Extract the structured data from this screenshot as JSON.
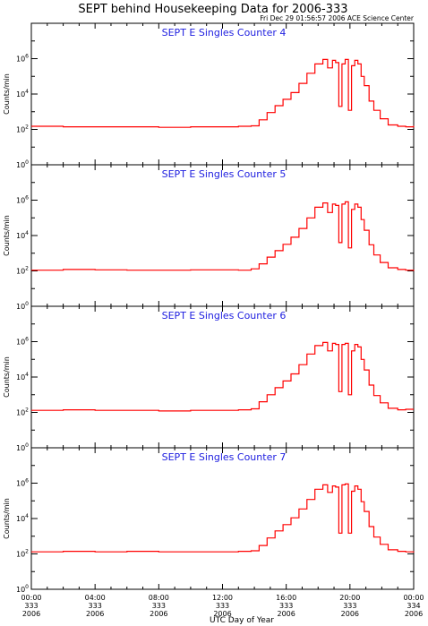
{
  "title": "SEPT behind Housekeeping Data for 2006-333",
  "timestamp": "Fri Dec 29 01:56:57 2006 ACE Science Center",
  "xlabel": "UTC Day of Year",
  "colors": {
    "trace": "#ff0000",
    "panel_title": "#2020e0",
    "axis": "#000000"
  },
  "chart_data": [
    {
      "type": "line",
      "title": "SEPT E Singles Counter 4",
      "ylabel": "Counts/min",
      "yscale": "log",
      "ylim": [
        1,
        100000000
      ],
      "yticks": [
        {
          "v": 1,
          "label": "10^0"
        },
        {
          "v": 100,
          "label": "10^2"
        },
        {
          "v": 10000,
          "label": "10^4"
        },
        {
          "v": 1000000,
          "label": "10^6"
        }
      ],
      "xlim": [
        0,
        24
      ],
      "xticks": [
        {
          "v": 0,
          "lines": [
            "00:00",
            "333",
            "2006"
          ]
        },
        {
          "v": 4,
          "lines": [
            "04:00",
            "333",
            "2006"
          ]
        },
        {
          "v": 8,
          "lines": [
            "08:00",
            "333",
            "2006"
          ]
        },
        {
          "v": 12,
          "lines": [
            "12:00",
            "333",
            "2006"
          ]
        },
        {
          "v": 16,
          "lines": [
            "16:00",
            "333",
            "2006"
          ]
        },
        {
          "v": 20,
          "lines": [
            "20:00",
            "333",
            "2006"
          ]
        },
        {
          "v": 24,
          "lines": [
            "00:00",
            "334",
            "2006"
          ]
        }
      ],
      "series": [
        {
          "x": [
            0,
            2,
            4,
            6,
            8,
            10,
            12,
            13,
            13.8,
            14.3,
            14.8,
            15.3,
            15.8,
            16.3,
            16.8,
            17.3,
            17.8,
            18.3,
            18.6,
            18.9,
            19.1,
            19.3,
            19.5,
            19.7,
            19.9,
            20.1,
            20.3,
            20.5,
            20.7,
            20.9,
            21.2,
            21.5,
            21.9,
            22.4,
            23,
            23.5,
            24
          ],
          "y": [
            150,
            140,
            140,
            140,
            130,
            140,
            140,
            150,
            160,
            350,
            900,
            2200,
            5000,
            12000,
            40000,
            150000,
            500000,
            900000,
            300000,
            800000,
            600000,
            2000,
            500000,
            900000,
            1200,
            400000,
            800000,
            500000,
            100000,
            30000,
            4000,
            1200,
            400,
            180,
            150,
            140,
            160
          ]
        }
      ]
    },
    {
      "type": "line",
      "title": "SEPT E Singles Counter 5",
      "ylabel": "Counts/min",
      "yscale": "log",
      "ylim": [
        1,
        100000000
      ],
      "yticks": [
        {
          "v": 1,
          "label": "10^0"
        },
        {
          "v": 100,
          "label": "10^2"
        },
        {
          "v": 10000,
          "label": "10^4"
        },
        {
          "v": 1000000,
          "label": "10^6"
        }
      ],
      "xlim": [
        0,
        24
      ],
      "series": [
        {
          "x": [
            0,
            2,
            4,
            6,
            8,
            10,
            12,
            13,
            13.8,
            14.3,
            14.8,
            15.3,
            15.8,
            16.3,
            16.8,
            17.3,
            17.8,
            18.3,
            18.6,
            18.9,
            19.1,
            19.3,
            19.5,
            19.7,
            19.9,
            20.1,
            20.3,
            20.5,
            20.7,
            20.9,
            21.2,
            21.5,
            21.9,
            22.4,
            23,
            23.5,
            24
          ],
          "y": [
            110,
            120,
            115,
            110,
            110,
            115,
            115,
            110,
            130,
            250,
            600,
            1400,
            3200,
            8000,
            25000,
            100000,
            400000,
            700000,
            200000,
            600000,
            500000,
            4000,
            600000,
            800000,
            2000,
            300000,
            600000,
            400000,
            80000,
            20000,
            3000,
            800,
            300,
            150,
            120,
            110,
            100
          ]
        }
      ]
    },
    {
      "type": "line",
      "title": "SEPT E Singles Counter 6",
      "ylabel": "Counts/min",
      "yscale": "log",
      "ylim": [
        1,
        100000000
      ],
      "yticks": [
        {
          "v": 1,
          "label": "10^0"
        },
        {
          "v": 100,
          "label": "10^2"
        },
        {
          "v": 10000,
          "label": "10^4"
        },
        {
          "v": 1000000,
          "label": "10^6"
        }
      ],
      "xlim": [
        0,
        24
      ],
      "series": [
        {
          "x": [
            0,
            2,
            4,
            6,
            8,
            10,
            12,
            13,
            13.8,
            14.3,
            14.8,
            15.3,
            15.8,
            16.3,
            16.8,
            17.3,
            17.8,
            18.3,
            18.6,
            18.9,
            19.1,
            19.3,
            19.5,
            19.7,
            19.9,
            20.1,
            20.3,
            20.5,
            20.7,
            20.9,
            21.2,
            21.5,
            21.9,
            22.4,
            23,
            23.5,
            24
          ],
          "y": [
            130,
            140,
            130,
            130,
            120,
            130,
            130,
            140,
            160,
            400,
            1000,
            2500,
            6000,
            15000,
            50000,
            200000,
            600000,
            900000,
            300000,
            800000,
            700000,
            1500,
            700000,
            800000,
            1000,
            300000,
            700000,
            500000,
            100000,
            25000,
            3500,
            900,
            350,
            170,
            140,
            150,
            150
          ]
        }
      ]
    },
    {
      "type": "line",
      "title": "SEPT E Singles Counter 7",
      "ylabel": "Counts/min",
      "yscale": "log",
      "ylim": [
        1,
        100000000
      ],
      "yticks": [
        {
          "v": 1,
          "label": "10^0"
        },
        {
          "v": 100,
          "label": "10^2"
        },
        {
          "v": 10000,
          "label": "10^4"
        },
        {
          "v": 1000000,
          "label": "10^6"
        }
      ],
      "xlim": [
        0,
        24
      ],
      "series": [
        {
          "x": [
            0,
            2,
            4,
            6,
            8,
            10,
            12,
            13,
            13.8,
            14.3,
            14.8,
            15.3,
            15.8,
            16.3,
            16.8,
            17.3,
            17.8,
            18.3,
            18.6,
            18.9,
            19.1,
            19.3,
            19.5,
            19.7,
            19.9,
            20.1,
            20.3,
            20.5,
            20.7,
            20.9,
            21.2,
            21.5,
            21.9,
            22.4,
            23,
            23.5,
            24
          ],
          "y": [
            130,
            140,
            130,
            140,
            130,
            130,
            130,
            140,
            150,
            300,
            800,
            2000,
            4500,
            11000,
            35000,
            120000,
            450000,
            800000,
            300000,
            700000,
            600000,
            1500,
            800000,
            900000,
            1500,
            350000,
            700000,
            450000,
            90000,
            25000,
            3500,
            900,
            350,
            170,
            140,
            130,
            140
          ]
        }
      ]
    }
  ]
}
